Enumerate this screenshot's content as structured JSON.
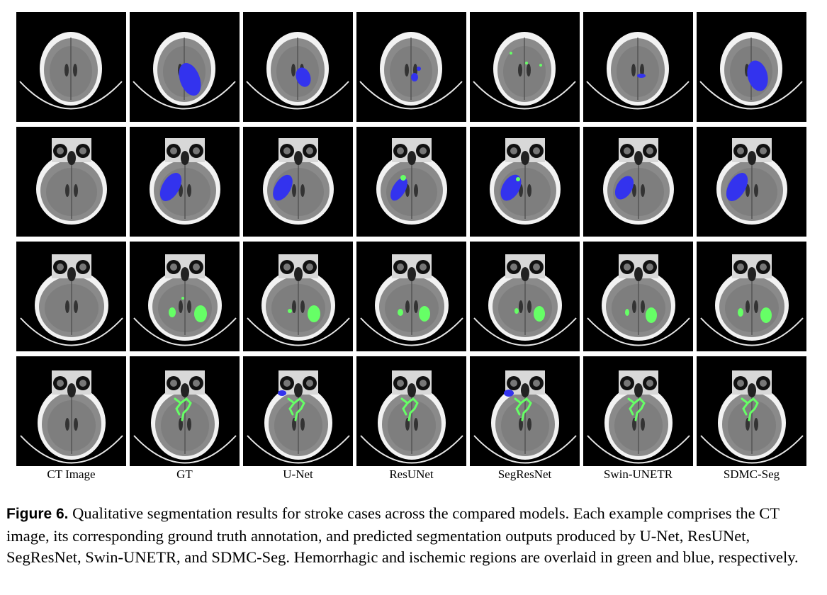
{
  "figure": {
    "columns": [
      "CT Image",
      "GT",
      "U-Net",
      "ResUNet",
      "SegResNet",
      "Swin-UNETR",
      "SDMC-Seg"
    ],
    "row_count": 4,
    "caption_label": "Figure 6.",
    "caption_text": "Qualitative segmentation results for stroke cases across the compared models. Each example comprises the CT image, its corresponding ground truth annotation, and predicted segmentation outputs produced by U-Net, ResUNet, SegResNet, Swin-UNETR, and SDMC-Seg. Hemorrhagic and ischemic regions are overlaid in green and blue, respectively."
  },
  "colors": {
    "hemorrhagic": "#66ff66",
    "ischemic": "#3333ee",
    "background": "#000000"
  }
}
